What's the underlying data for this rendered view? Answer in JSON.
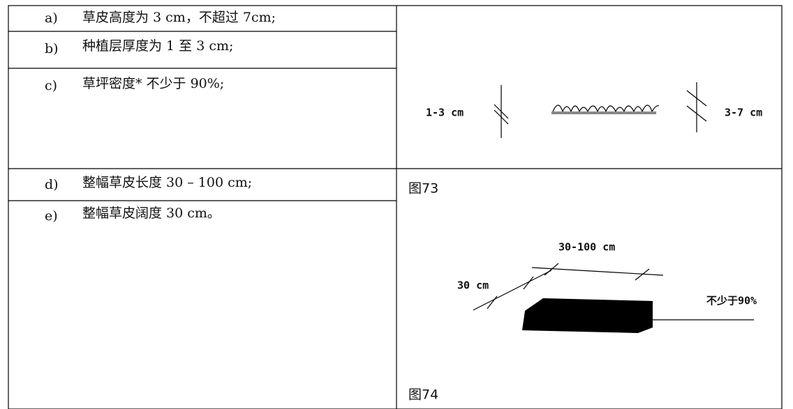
{
  "table": {
    "rows": [
      {
        "label": "a)",
        "text": "草皮高度为 3 cm，不超过 7cm;"
      },
      {
        "label": "b)",
        "text": "种植层厚度为 1 至 3 cm;"
      },
      {
        "label": "c)",
        "text": "草坪密度* 不少于 90%;"
      },
      {
        "label": "d)",
        "text": "整幅草皮长度 30 – 100 cm;"
      },
      {
        "label": "e)",
        "text": "整幅草皮阔度 30 cm。"
      }
    ],
    "figures": [
      {
        "caption": "图73",
        "labels": [
          "1-3 cm",
          "3-7 cm"
        ]
      },
      {
        "caption": "图74",
        "labels": [
          "30-100 cm",
          "30 cm",
          "不少于90%"
        ]
      }
    ]
  }
}
